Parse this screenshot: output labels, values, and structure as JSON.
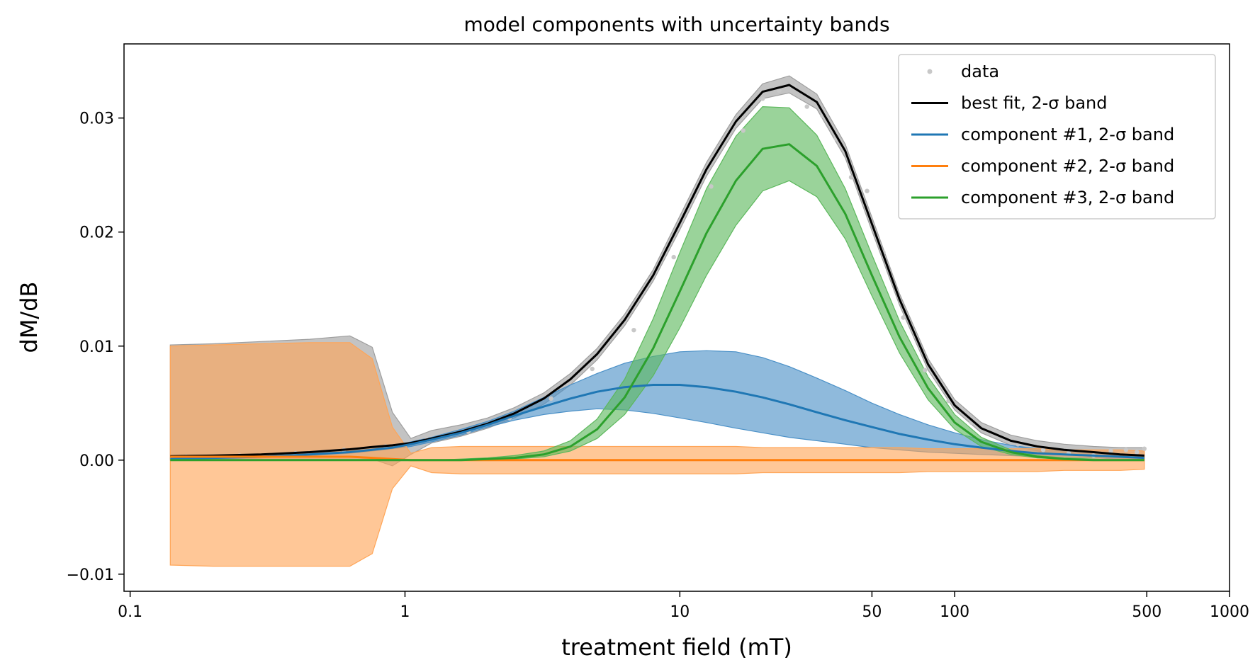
{
  "chart_data": {
    "type": "line",
    "title": "model components with uncertainty bands",
    "xlabel": "treatment field (mT)",
    "ylabel": "dM/dB",
    "x_scale": "log",
    "xlim": [
      0.095,
      1000
    ],
    "ylim": [
      -0.0115,
      0.0365
    ],
    "x_ticks": [
      0.1,
      1,
      10,
      50,
      100,
      500,
      1000
    ],
    "x_tick_labels": [
      "0.1",
      "1",
      "10",
      "50",
      "100",
      "500",
      "1000"
    ],
    "y_ticks": [
      -0.01,
      0.0,
      0.01,
      0.02,
      0.03
    ],
    "y_tick_labels": [
      "−0.01",
      "0.00",
      "0.01",
      "0.02",
      "0.03"
    ],
    "grid": false,
    "legend_position": "top-right",
    "legend": [
      {
        "label": "data",
        "color": "#c8c8c8",
        "marker": "dot"
      },
      {
        "label": "best fit, 2-σ band",
        "color": "#000000",
        "marker": "line"
      },
      {
        "label": "component #1, 2-σ band",
        "color": "#1f77b4",
        "marker": "line"
      },
      {
        "label": "component #2, 2-σ band",
        "color": "#ff7f0e",
        "marker": "line"
      },
      {
        "label": "component #3, 2-σ band",
        "color": "#2ca02c",
        "marker": "line"
      }
    ],
    "x": [
      0.14,
      0.2,
      0.3,
      0.45,
      0.63,
      0.76,
      0.9,
      1.05,
      1.25,
      1.6,
      2.0,
      2.5,
      3.2,
      4.0,
      5.0,
      6.3,
      8.0,
      10.0,
      12.5,
      16.0,
      20.0,
      25.0,
      31.5,
      40.0,
      50.0,
      63.0,
      80.0,
      100.0,
      125.0,
      160.0,
      200.0,
      250.0,
      320.0,
      400.0,
      490.0
    ],
    "series": [
      {
        "name": "best fit, 2-σ band",
        "color": "#000000",
        "band_color": "#9e9e9e",
        "values": [
          0.00035,
          0.0004,
          0.0005,
          0.0007,
          0.00095,
          0.00115,
          0.0013,
          0.0015,
          0.0019,
          0.0025,
          0.0032,
          0.0041,
          0.0054,
          0.0071,
          0.0093,
          0.0123,
          0.0162,
          0.0208,
          0.0255,
          0.0297,
          0.0323,
          0.0329,
          0.0314,
          0.0271,
          0.0207,
          0.0141,
          0.0084,
          0.0048,
          0.0028,
          0.0017,
          0.0012,
          0.0009,
          0.0007,
          0.0005,
          0.0004
        ],
        "lower": [
          0.0001,
          0.0001,
          0.0001,
          0.0001,
          0.0001,
          0.0001,
          -0.0005,
          0.0005,
          0.0015,
          0.0021,
          0.0028,
          0.0037,
          0.0049,
          0.0066,
          0.0088,
          0.0118,
          0.0157,
          0.0202,
          0.0249,
          0.0291,
          0.0317,
          0.0322,
          0.0308,
          0.0265,
          0.0201,
          0.0136,
          0.0079,
          0.0044,
          0.0024,
          0.0013,
          0.0008,
          0.0005,
          0.0003,
          0.0002,
          0.0001
        ],
        "upper": [
          0.0101,
          0.0102,
          0.0104,
          0.0106,
          0.0109,
          0.0099,
          0.0042,
          0.0019,
          0.0026,
          0.0031,
          0.0037,
          0.0046,
          0.0059,
          0.0076,
          0.0098,
          0.0128,
          0.0167,
          0.0214,
          0.0261,
          0.0303,
          0.033,
          0.0337,
          0.0321,
          0.0277,
          0.0213,
          0.0146,
          0.0089,
          0.0053,
          0.0033,
          0.0022,
          0.0017,
          0.0014,
          0.0012,
          0.0011,
          0.0011
        ]
      },
      {
        "name": "component #1, 2-σ band",
        "color": "#1f77b4",
        "band_color": "#4a90c7",
        "values": [
          0.0001,
          0.0002,
          0.0003,
          0.0005,
          0.0007,
          0.0009,
          0.0011,
          0.0014,
          0.0018,
          0.0024,
          0.0031,
          0.0039,
          0.0047,
          0.0054,
          0.006,
          0.0064,
          0.0066,
          0.0066,
          0.0064,
          0.006,
          0.0055,
          0.0049,
          0.0042,
          0.0035,
          0.0029,
          0.0023,
          0.0018,
          0.0014,
          0.0011,
          0.0008,
          0.0006,
          0.0005,
          0.0004,
          0.0003,
          0.0002
        ],
        "lower": [
          0.0,
          0.0001,
          0.0002,
          0.0004,
          0.0006,
          0.0008,
          0.001,
          0.0012,
          0.0016,
          0.0022,
          0.0029,
          0.0035,
          0.004,
          0.0043,
          0.0045,
          0.0044,
          0.0041,
          0.0037,
          0.0033,
          0.0028,
          0.0024,
          0.002,
          0.0017,
          0.0014,
          0.0011,
          0.0009,
          0.0007,
          0.0006,
          0.0005,
          0.0004,
          0.0003,
          0.0002,
          0.0002,
          0.0001,
          0.0001
        ],
        "upper": [
          0.0002,
          0.0003,
          0.0004,
          0.0006,
          0.0008,
          0.001,
          0.0012,
          0.0016,
          0.002,
          0.0027,
          0.0034,
          0.0043,
          0.0055,
          0.0066,
          0.0076,
          0.0085,
          0.0091,
          0.0095,
          0.0096,
          0.0095,
          0.009,
          0.0082,
          0.0072,
          0.0061,
          0.005,
          0.004,
          0.0031,
          0.0024,
          0.0018,
          0.0013,
          0.001,
          0.0008,
          0.0006,
          0.0005,
          0.0004
        ]
      },
      {
        "name": "component #2, 2-σ band",
        "color": "#ff7f0e",
        "band_color": "#ffa557",
        "values": [
          0.0003,
          0.0003,
          0.0003,
          0.0003,
          0.0003,
          0.0002,
          0.0001,
          0.0,
          0.0,
          0.0,
          0.0,
          0.0,
          0.0,
          0.0,
          0.0,
          0.0,
          0.0,
          0.0,
          0.0,
          0.0,
          0.0,
          0.0,
          0.0,
          0.0,
          0.0,
          0.0,
          0.0,
          0.0,
          0.0,
          0.0,
          0.0,
          0.0,
          0.0,
          0.0,
          0.0
        ],
        "lower": [
          -0.0092,
          -0.0093,
          -0.0093,
          -0.0093,
          -0.0093,
          -0.0082,
          -0.0025,
          -0.0005,
          -0.0011,
          -0.0012,
          -0.0012,
          -0.0012,
          -0.0012,
          -0.0012,
          -0.0012,
          -0.0012,
          -0.0012,
          -0.0012,
          -0.0012,
          -0.0012,
          -0.0011,
          -0.0011,
          -0.0011,
          -0.0011,
          -0.0011,
          -0.0011,
          -0.001,
          -0.001,
          -0.001,
          -0.001,
          -0.001,
          -0.0009,
          -0.0009,
          -0.0009,
          -0.0008
        ],
        "upper": [
          0.01,
          0.0101,
          0.0102,
          0.0103,
          0.0103,
          0.0089,
          0.0029,
          0.0006,
          0.0011,
          0.0012,
          0.0012,
          0.0012,
          0.0012,
          0.0012,
          0.0012,
          0.0012,
          0.0012,
          0.0012,
          0.0012,
          0.0012,
          0.0011,
          0.0011,
          0.0011,
          0.0011,
          0.0011,
          0.0011,
          0.001,
          0.001,
          0.001,
          0.001,
          0.001,
          0.0009,
          0.0009,
          0.0009,
          0.0008
        ]
      },
      {
        "name": "component #3, 2-σ band",
        "color": "#2ca02c",
        "band_color": "#5cb85c",
        "values": [
          0.0,
          0.0,
          0.0,
          0.0,
          0.0,
          0.0,
          0.0,
          0.0,
          0.0,
          0.0,
          0.0001,
          0.0002,
          0.0005,
          0.0012,
          0.0027,
          0.0055,
          0.0098,
          0.0148,
          0.0199,
          0.0245,
          0.0273,
          0.0277,
          0.0258,
          0.0216,
          0.0162,
          0.0108,
          0.0063,
          0.0033,
          0.0016,
          0.0007,
          0.0003,
          0.0001,
          0.0,
          0.0,
          0.0
        ],
        "lower": [
          0.0,
          0.0,
          0.0,
          0.0,
          0.0,
          0.0,
          0.0,
          0.0,
          0.0,
          0.0,
          0.0,
          0.0001,
          0.0003,
          0.0008,
          0.0019,
          0.004,
          0.0074,
          0.0116,
          0.0162,
          0.0206,
          0.0236,
          0.0245,
          0.0231,
          0.0194,
          0.0144,
          0.0094,
          0.0053,
          0.0027,
          0.0012,
          0.0005,
          0.0002,
          0.0001,
          0.0,
          0.0,
          0.0
        ],
        "upper": [
          0.0,
          0.0,
          0.0,
          0.0,
          0.0,
          0.0,
          0.0,
          0.0,
          0.0,
          0.0001,
          0.0002,
          0.0004,
          0.0008,
          0.0017,
          0.0036,
          0.0071,
          0.0124,
          0.0182,
          0.0238,
          0.0284,
          0.031,
          0.0309,
          0.0285,
          0.0238,
          0.018,
          0.0122,
          0.0073,
          0.004,
          0.002,
          0.0009,
          0.0004,
          0.0002,
          0.0001,
          0.0,
          0.0
        ]
      }
    ],
    "scatter": {
      "name": "data",
      "color": "#c8c8c8",
      "x": [
        0.16,
        0.25,
        0.4,
        0.6,
        0.85,
        1.2,
        1.7,
        2.4,
        3.4,
        4.8,
        6.8,
        9.5,
        13.0,
        17.0,
        20.0,
        23.0,
        26.0,
        29.0,
        33.0,
        37.0,
        42.0,
        48.0,
        55.0,
        65.0,
        78.0,
        95.0,
        115.0,
        140.0,
        170.0,
        210.0,
        260.0,
        320.0,
        370.0,
        420.0,
        460.0,
        490.0
      ],
      "y": [
        0.0003,
        0.0004,
        0.0006,
        0.0009,
        0.0012,
        0.0018,
        0.0025,
        0.0037,
        0.0054,
        0.008,
        0.0114,
        0.0178,
        0.024,
        0.0289,
        0.0317,
        0.0324,
        0.0328,
        0.031,
        0.0302,
        0.0282,
        0.0248,
        0.0236,
        0.0182,
        0.0125,
        0.0079,
        0.0052,
        0.0033,
        0.0022,
        0.0014,
        0.0009,
        0.0006,
        0.0004,
        0.0008,
        0.0009,
        0.0007,
        0.001
      ]
    }
  }
}
